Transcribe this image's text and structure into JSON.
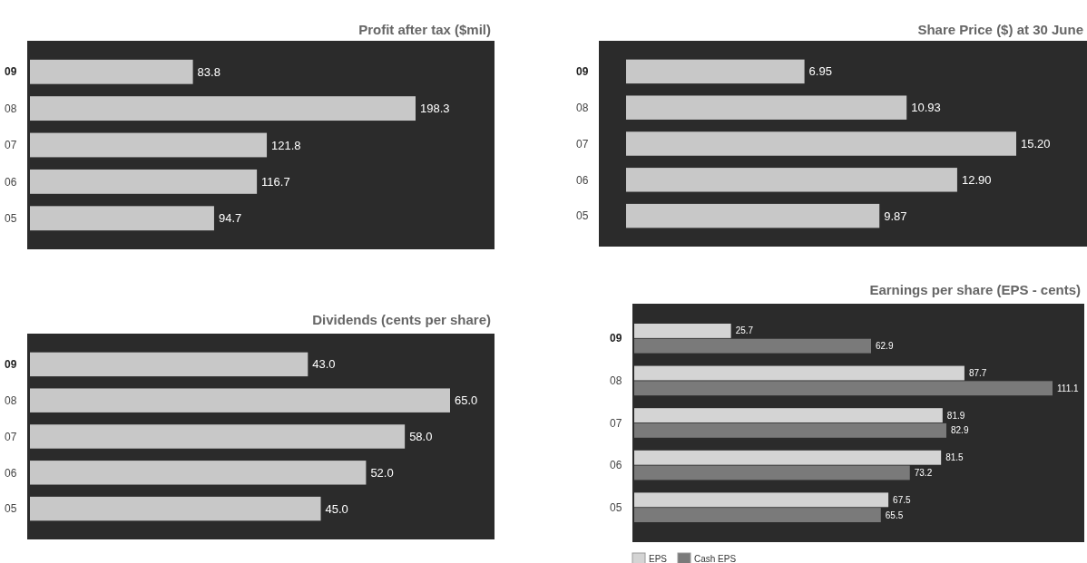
{
  "chart_data": [
    {
      "type": "bar",
      "orientation": "horizontal",
      "title": "Profit after tax ($mil)",
      "categories": [
        "09",
        "08",
        "07",
        "06",
        "05"
      ],
      "values": [
        83.8,
        198.3,
        121.8,
        116.7,
        94.7
      ],
      "value_labels": [
        "83.8",
        "198.3",
        "121.8",
        "116.7",
        "94.7"
      ],
      "color": "#c8c8c8"
    },
    {
      "type": "bar",
      "orientation": "horizontal",
      "title": "Share Price ($) at 30 June",
      "categories": [
        "09",
        "08",
        "07",
        "06",
        "05"
      ],
      "values": [
        6.95,
        10.93,
        15.2,
        12.9,
        9.87
      ],
      "value_labels": [
        "6.95",
        "10.93",
        "15.20",
        "12.90",
        "9.87"
      ],
      "color": "#c8c8c8"
    },
    {
      "type": "bar",
      "orientation": "horizontal",
      "title": "Dividends (cents per share)",
      "categories": [
        "09",
        "08",
        "07",
        "06",
        "05"
      ],
      "values": [
        43.0,
        65.0,
        58.0,
        52.0,
        45.0
      ],
      "value_labels": [
        "43.0",
        "65.0",
        "58.0",
        "52.0",
        "45.0"
      ],
      "color": "#c8c8c8"
    },
    {
      "type": "bar",
      "orientation": "horizontal",
      "title": "Earnings per share (EPS - cents)",
      "categories": [
        "09",
        "08",
        "07",
        "06",
        "05"
      ],
      "legend": "bottom left",
      "series": [
        {
          "name": "EPS",
          "color": "#d4d4d4",
          "values": [
            25.7,
            87.7,
            81.9,
            81.5,
            67.5
          ],
          "value_labels": [
            "25.7",
            "87.7",
            "81.9",
            "81.5",
            "67.5"
          ]
        },
        {
          "name": "Cash EPS",
          "color": "#7a7a7a",
          "values": [
            62.9,
            111.1,
            82.9,
            73.2,
            65.5
          ],
          "value_labels": [
            "62.9",
            "111.1",
            "82.9",
            "73.2",
            "65.5"
          ]
        }
      ]
    }
  ]
}
